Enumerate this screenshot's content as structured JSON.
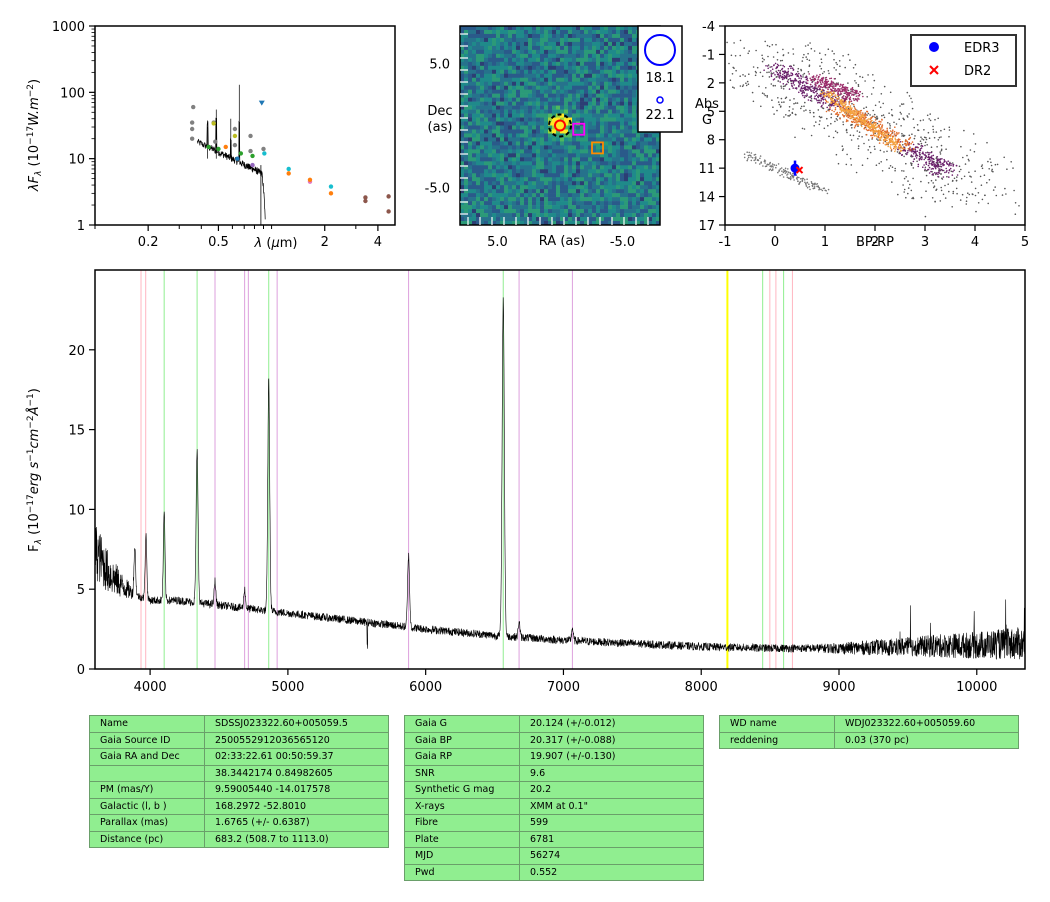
{
  "colors": {
    "spectrum": "#000000",
    "hydrogen_line": "#90ee90",
    "helium_line": "#dda0dd",
    "calcium_line": "#ffb6c1",
    "special_line": "#ffff00",
    "edr3": "#0000ff",
    "dr2": "#ff0000",
    "image_bg": "#2a6a8a",
    "table_bg": "#90ee90"
  },
  "chart_data": [
    {
      "id": "sed",
      "type": "scatter",
      "xlabel": "λ (μm)",
      "ylabel": "λF_λ (10^{-17} W.m^{-2})",
      "xscale": "log",
      "yscale": "log",
      "xlim": [
        0.1,
        5.0
      ],
      "ylim": [
        1,
        1000
      ],
      "xticks": [
        {
          "v": 0.2,
          "label": "0.2"
        },
        {
          "v": 0.5,
          "label": "0.5"
        },
        {
          "v": 2,
          "label": "2"
        },
        {
          "v": 4,
          "label": "4"
        }
      ],
      "yticks": [
        {
          "v": 1,
          "label": "1"
        },
        {
          "v": 10,
          "label": "10"
        },
        {
          "v": 100,
          "label": "100"
        },
        {
          "v": 1000,
          "label": "1000"
        }
      ],
      "points": [
        {
          "x": 0.355,
          "y": 28,
          "c": "#808080"
        },
        {
          "x": 0.355,
          "y": 35,
          "c": "#808080"
        },
        {
          "x": 0.355,
          "y": 20,
          "c": "#808080"
        },
        {
          "x": 0.36,
          "y": 60,
          "c": "#808080"
        },
        {
          "x": 0.47,
          "y": 35,
          "c": "#808080"
        },
        {
          "x": 0.48,
          "y": 18,
          "c": "#808080"
        },
        {
          "x": 0.62,
          "y": 28,
          "c": "#808080"
        },
        {
          "x": 0.62,
          "y": 16,
          "c": "#808080"
        },
        {
          "x": 0.76,
          "y": 22,
          "c": "#808080"
        },
        {
          "x": 0.76,
          "y": 13,
          "c": "#808080"
        },
        {
          "x": 0.9,
          "y": 14,
          "c": "#808080"
        },
        {
          "x": 0.44,
          "y": 15,
          "c": "#2ca02c"
        },
        {
          "x": 0.5,
          "y": 14,
          "c": "#2ca02c"
        },
        {
          "x": 0.67,
          "y": 12,
          "c": "#2ca02c"
        },
        {
          "x": 0.78,
          "y": 11,
          "c": "#2ca02c"
        },
        {
          "x": 0.55,
          "y": 15,
          "c": "#ff7f0e"
        },
        {
          "x": 0.47,
          "y": 34,
          "c": "#bcbd22"
        },
        {
          "x": 0.62,
          "y": 22,
          "c": "#bcbd22"
        },
        {
          "x": 0.64,
          "y": 10,
          "c": "#1f77b4"
        },
        {
          "x": 0.78,
          "y": 8,
          "c": "#9467bd"
        },
        {
          "x": 0.91,
          "y": 12,
          "c": "#17becf"
        },
        {
          "x": 1.25,
          "y": 7,
          "c": "#17becf"
        },
        {
          "x": 1.25,
          "y": 6,
          "c": "#ff7f0e"
        },
        {
          "x": 1.65,
          "y": 4.5,
          "c": "#e377c2"
        },
        {
          "x": 1.65,
          "y": 4.8,
          "c": "#ff7f0e"
        },
        {
          "x": 2.17,
          "y": 3.8,
          "c": "#17becf"
        },
        {
          "x": 2.17,
          "y": 3.0,
          "c": "#ff7f0e"
        },
        {
          "x": 3.4,
          "y": 2.6,
          "c": "#8c564b"
        },
        {
          "x": 3.4,
          "y": 2.3,
          "c": "#8c564b"
        },
        {
          "x": 4.6,
          "y": 2.7,
          "c": "#8c564b"
        },
        {
          "x": 4.6,
          "y": 1.6,
          "c": "#8c564b"
        },
        {
          "x": 0.88,
          "y": 70,
          "c": "#1f77b4"
        }
      ]
    },
    {
      "id": "image",
      "type": "heatmap",
      "xlabel": "RA (as)",
      "ylabel": "Dec (as)",
      "xlim": [
        8.0,
        -8.0
      ],
      "ylim": [
        -8.0,
        8.0
      ],
      "xticks": [
        {
          "v": 5.0,
          "label": "5.0"
        },
        {
          "v": -5.0,
          "label": "-5.0"
        }
      ],
      "yticks": [
        {
          "v": 5.0,
          "label": "5.0"
        },
        {
          "v": -5.0,
          "label": "-5.0"
        }
      ],
      "legend": [
        {
          "label": "18.1"
        },
        {
          "label": "22.1"
        }
      ],
      "markers": [
        {
          "type": "source",
          "x": 0.0,
          "y": 0.0
        },
        {
          "type": "square-magenta",
          "x": -1.5,
          "y": -0.3
        },
        {
          "type": "square-orange",
          "x": -3.0,
          "y": -1.8
        }
      ]
    },
    {
      "id": "hrd",
      "type": "scatter",
      "xlabel": "BP-RP",
      "ylabel": "Abs G",
      "xlim": [
        -1,
        5
      ],
      "ylim": [
        17,
        -4
      ],
      "xticks": [
        {
          "v": -1,
          "label": "-1"
        },
        {
          "v": 0,
          "label": "0"
        },
        {
          "v": 1,
          "label": "1"
        },
        {
          "v": 2,
          "label": "2"
        },
        {
          "v": 3,
          "label": "3"
        },
        {
          "v": 4,
          "label": "4"
        },
        {
          "v": 5,
          "label": "5"
        }
      ],
      "yticks": [
        {
          "v": -4,
          "label": "-4"
        },
        {
          "v": -1,
          "label": "-1"
        },
        {
          "v": 2,
          "label": "2"
        },
        {
          "v": 5,
          "label": "5"
        },
        {
          "v": 8,
          "label": "8"
        },
        {
          "v": 11,
          "label": "11"
        },
        {
          "v": 14,
          "label": "14"
        },
        {
          "v": 17,
          "label": "17"
        }
      ],
      "legend": [
        {
          "label": "EDR3",
          "marker": "circle",
          "color": "#0000ff"
        },
        {
          "label": "DR2",
          "marker": "x",
          "color": "#ff0000"
        }
      ],
      "series": [
        {
          "name": "EDR3",
          "x": 0.4,
          "y": 11.0,
          "yerr": 0.8
        },
        {
          "name": "DR2",
          "x": 0.45,
          "y": 11.2
        }
      ]
    },
    {
      "id": "spectrum",
      "type": "line",
      "xlabel": "",
      "ylabel": "F_λ (10^{-17} erg s^{-1} cm^{-2} Å^{-1})",
      "xlim": [
        3600,
        10350
      ],
      "ylim": [
        0,
        25
      ],
      "xticks": [
        {
          "v": 4000,
          "label": "4000"
        },
        {
          "v": 5000,
          "label": "5000"
        },
        {
          "v": 6000,
          "label": "6000"
        },
        {
          "v": 7000,
          "label": "7000"
        },
        {
          "v": 8000,
          "label": "8000"
        },
        {
          "v": 9000,
          "label": "9000"
        },
        {
          "v": 10000,
          "label": "10000"
        }
      ],
      "yticks": [
        {
          "v": 0,
          "label": "0"
        },
        {
          "v": 5,
          "label": "5"
        },
        {
          "v": 10,
          "label": "10"
        },
        {
          "v": 15,
          "label": "15"
        },
        {
          "v": 20,
          "label": "20"
        }
      ],
      "continuum_knots": [
        [
          3600,
          7.5
        ],
        [
          3700,
          6.0
        ],
        [
          3800,
          5.2
        ],
        [
          3900,
          4.6
        ],
        [
          4000,
          4.3
        ],
        [
          4200,
          4.3
        ],
        [
          4400,
          4.1
        ],
        [
          4600,
          3.9
        ],
        [
          4800,
          3.7
        ],
        [
          5000,
          3.5
        ],
        [
          5200,
          3.3
        ],
        [
          5500,
          3.0
        ],
        [
          6000,
          2.5
        ],
        [
          6500,
          2.1
        ],
        [
          7000,
          1.8
        ],
        [
          7500,
          1.6
        ],
        [
          8000,
          1.4
        ],
        [
          8500,
          1.3
        ],
        [
          9000,
          1.3
        ],
        [
          9500,
          1.4
        ],
        [
          10000,
          1.5
        ],
        [
          10350,
          1.6
        ]
      ],
      "emission_lines": [
        {
          "center": 3889,
          "peak": 3.0,
          "width": 6
        },
        {
          "center": 3970,
          "peak": 4.0,
          "width": 6
        },
        {
          "center": 4102,
          "peak": 5.5,
          "width": 6
        },
        {
          "center": 4341,
          "peak": 9.5,
          "width": 7
        },
        {
          "center": 4471,
          "peak": 1.5,
          "width": 6
        },
        {
          "center": 4686,
          "peak": 1.2,
          "width": 6
        },
        {
          "center": 4861,
          "peak": 14.5,
          "width": 7
        },
        {
          "center": 5876,
          "peak": 4.5,
          "width": 7
        },
        {
          "center": 6563,
          "peak": 21.0,
          "width": 8
        },
        {
          "center": 6678,
          "peak": 1.0,
          "width": 6
        },
        {
          "center": 7065,
          "peak": 0.8,
          "width": 6
        }
      ],
      "marker_lines": [
        {
          "x": 3934,
          "type": "calcium"
        },
        {
          "x": 3968,
          "type": "calcium"
        },
        {
          "x": 4102,
          "type": "hydrogen"
        },
        {
          "x": 4341,
          "type": "hydrogen"
        },
        {
          "x": 4471,
          "type": "helium"
        },
        {
          "x": 4686,
          "type": "helium"
        },
        {
          "x": 4713,
          "type": "helium"
        },
        {
          "x": 4861,
          "type": "hydrogen"
        },
        {
          "x": 4922,
          "type": "helium"
        },
        {
          "x": 5876,
          "type": "helium"
        },
        {
          "x": 6563,
          "type": "hydrogen"
        },
        {
          "x": 6678,
          "type": "helium"
        },
        {
          "x": 7065,
          "type": "helium"
        },
        {
          "x": 8190,
          "type": "special"
        },
        {
          "x": 8446,
          "type": "hydrogen"
        },
        {
          "x": 8498,
          "type": "calcium"
        },
        {
          "x": 8542,
          "type": "calcium"
        },
        {
          "x": 8598,
          "type": "hydrogen"
        },
        {
          "x": 8662,
          "type": "calcium"
        }
      ]
    }
  ],
  "tables": {
    "table1": [
      [
        "Name",
        "SDSSJ023322.60+005059.5"
      ],
      [
        "Gaia Source ID",
        "2500552912036565120"
      ],
      [
        "Gaia RA and Dec",
        "02:33:22.61    00:50:59.37"
      ],
      [
        "",
        "38.3442174    0.84982605"
      ],
      [
        "PM (mas/Y)",
        "9.59005440    -14.017578"
      ],
      [
        "Galactic (l, b )",
        "168.2972    -52.8010"
      ],
      [
        "Parallax (mas)",
        "1.6765 (+/- 0.6387)"
      ],
      [
        "Distance (pc)",
        "683.2 (508.7 to 1113.0)"
      ]
    ],
    "table2": [
      [
        "Gaia G",
        "20.124 (+/-0.012)"
      ],
      [
        "Gaia BP",
        "20.317 (+/-0.088)"
      ],
      [
        "Gaia RP",
        "19.907 (+/-0.130)"
      ],
      [
        "SNR",
        "9.6"
      ],
      [
        "Synthetic G mag",
        "20.2"
      ],
      [
        "X-rays",
        "XMM at 0.1\""
      ],
      [
        "Fibre",
        "599"
      ],
      [
        "Plate",
        "6781"
      ],
      [
        "MJD",
        "56274"
      ],
      [
        "Pwd",
        "0.552"
      ]
    ],
    "table3": [
      [
        "WD name",
        "WDJ023322.60+005059.60"
      ],
      [
        "reddening",
        "0.03 (370 pc)"
      ]
    ]
  }
}
